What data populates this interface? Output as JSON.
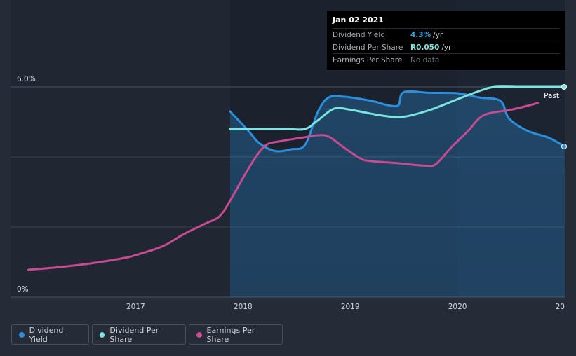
{
  "chart_data": {
    "type": "line",
    "x_ticks": [
      "2017",
      "2018",
      "2019",
      "2020",
      "20"
    ],
    "y_ticks": [
      "6.0%",
      "0%"
    ],
    "past_label": "Past",
    "series": [
      {
        "name": "Dividend Yield",
        "color": "#2b8fdc",
        "filled": true,
        "points": [
          [
            2017.88,
            5.3
          ],
          [
            2018.05,
            4.75
          ],
          [
            2018.15,
            4.4
          ],
          [
            2018.3,
            4.17
          ],
          [
            2018.45,
            4.22
          ],
          [
            2018.58,
            4.35
          ],
          [
            2018.7,
            5.3
          ],
          [
            2018.8,
            5.7
          ],
          [
            2018.95,
            5.72
          ],
          [
            2019.2,
            5.6
          ],
          [
            2019.35,
            5.48
          ],
          [
            2019.45,
            5.48
          ],
          [
            2019.5,
            5.85
          ],
          [
            2019.75,
            5.83
          ],
          [
            2020.0,
            5.82
          ],
          [
            2020.2,
            5.7
          ],
          [
            2020.4,
            5.6
          ],
          [
            2020.48,
            5.1
          ],
          [
            2020.65,
            4.75
          ],
          [
            2020.85,
            4.55
          ],
          [
            2021.0,
            4.3
          ]
        ]
      },
      {
        "name": "Dividend Per Share",
        "color": "#79e4e0",
        "points": [
          [
            2017.88,
            4.8
          ],
          [
            2018.1,
            4.8
          ],
          [
            2018.4,
            4.8
          ],
          [
            2018.58,
            4.8
          ],
          [
            2018.7,
            5.05
          ],
          [
            2018.85,
            5.38
          ],
          [
            2019.0,
            5.35
          ],
          [
            2019.3,
            5.18
          ],
          [
            2019.5,
            5.15
          ],
          [
            2019.75,
            5.35
          ],
          [
            2020.0,
            5.65
          ],
          [
            2020.2,
            5.88
          ],
          [
            2020.35,
            6.0
          ],
          [
            2020.6,
            6.0
          ],
          [
            2021.0,
            6.0
          ]
        ]
      },
      {
        "name": "Earnings Per Share",
        "color": "#c64b91",
        "points": [
          [
            2016.0,
            0.78
          ],
          [
            2016.3,
            0.86
          ],
          [
            2016.6,
            0.97
          ],
          [
            2016.9,
            1.12
          ],
          [
            2017.0,
            1.2
          ],
          [
            2017.25,
            1.45
          ],
          [
            2017.45,
            1.8
          ],
          [
            2017.65,
            2.1
          ],
          [
            2017.78,
            2.3
          ],
          [
            2017.88,
            2.75
          ],
          [
            2018.0,
            3.4
          ],
          [
            2018.12,
            4.0
          ],
          [
            2018.22,
            4.35
          ],
          [
            2018.35,
            4.45
          ],
          [
            2018.55,
            4.55
          ],
          [
            2018.7,
            4.62
          ],
          [
            2018.8,
            4.58
          ],
          [
            2018.95,
            4.25
          ],
          [
            2019.1,
            3.95
          ],
          [
            2019.2,
            3.88
          ],
          [
            2019.45,
            3.82
          ],
          [
            2019.7,
            3.75
          ],
          [
            2019.8,
            3.8
          ],
          [
            2019.95,
            4.3
          ],
          [
            2020.1,
            4.75
          ],
          [
            2020.2,
            5.1
          ],
          [
            2020.3,
            5.25
          ],
          [
            2020.5,
            5.35
          ],
          [
            2020.7,
            5.5
          ],
          [
            2020.75,
            5.55
          ]
        ]
      }
    ],
    "x_range": [
      2015.84,
      2021.0
    ],
    "y_range": [
      0,
      6.0
    ],
    "future_region_start": 2020.0,
    "data_start": 2017.88,
    "grid": true,
    "legend_position": "bottom-left"
  },
  "tooltip": {
    "date": "Jan 02 2021",
    "rows": [
      {
        "label": "Dividend Yield",
        "value": "4.3%",
        "unit": "/yr"
      },
      {
        "label": "Dividend Per Share",
        "value": "R0.050",
        "unit": "/yr"
      },
      {
        "label": "Earnings Per Share",
        "value": "No data"
      }
    ]
  },
  "legend": [
    {
      "label": "Dividend Yield",
      "color": "#2b8fdc"
    },
    {
      "label": "Dividend Per Share",
      "color": "#79e4e0"
    },
    {
      "label": "Earnings Per Share",
      "color": "#c64b91"
    }
  ]
}
